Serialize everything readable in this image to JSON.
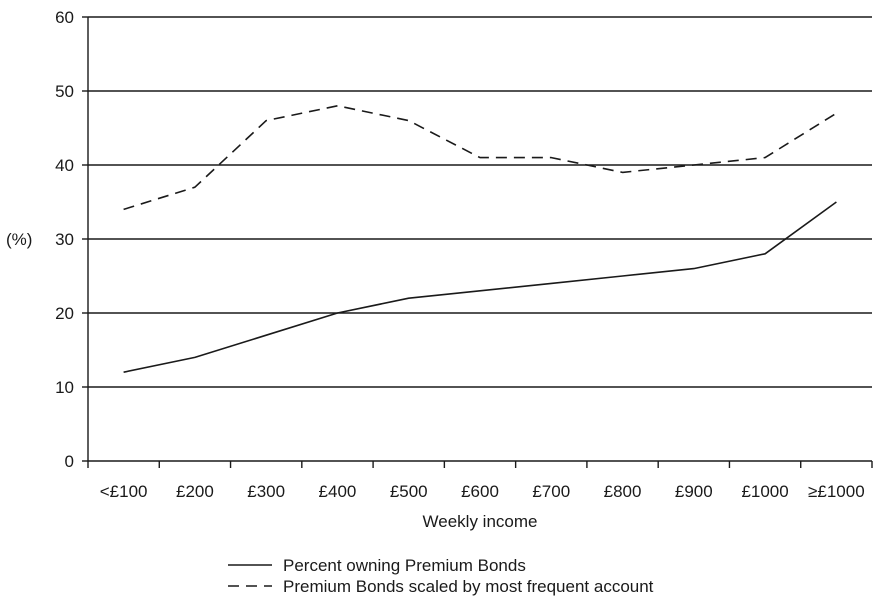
{
  "chart_data": {
    "type": "line",
    "xlabel": "Weekly income",
    "ylabel": "(%)",
    "categories": [
      "<£100",
      "£200",
      "£300",
      "£400",
      "£500",
      "£600",
      "£700",
      "£800",
      "£900",
      "£1000",
      "≥£1000"
    ],
    "ylim": [
      0,
      60
    ],
    "yticks": [
      0,
      10,
      20,
      30,
      40,
      50,
      60
    ],
    "grid": true,
    "legend_position": "bottom",
    "series": [
      {
        "name": "Percent owning Premium Bonds",
        "style": "solid",
        "color": "#1a1a1a",
        "values": [
          12,
          14,
          17,
          20,
          22,
          23,
          24,
          25,
          26,
          28,
          35
        ]
      },
      {
        "name": "Premium Bonds scaled by most frequent account",
        "style": "dashed",
        "color": "#1a1a1a",
        "values": [
          34,
          37,
          46,
          48,
          46,
          41,
          41,
          39,
          40,
          41,
          47
        ]
      }
    ]
  }
}
